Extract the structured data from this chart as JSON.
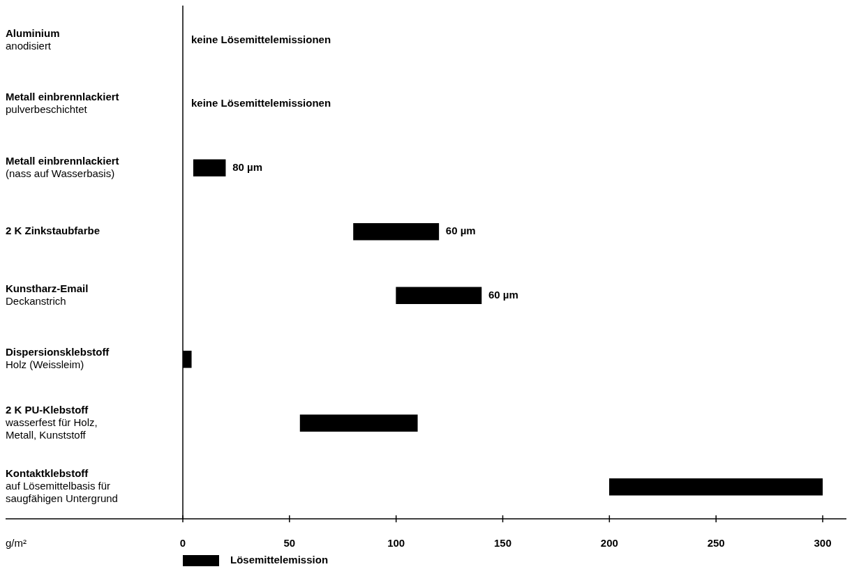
{
  "chart_data": {
    "type": "bar",
    "orientation": "horizontal",
    "xlabel": "g/m²",
    "legend": "bottom",
    "categories": [
      "Aluminium\nanodisiert",
      "Metall einbrennlackiert\npulverbeschichtet",
      "Metall einbrennlackiert\n(nass auf Wasserbasis)",
      "2 K Zinkstaubfarbe",
      "Kunstharz-Email\nDeckanstrich",
      "Dispersionsklebstoff\nHolz (Weissleim)",
      "2 K PU-Klebstoff\nwasserfest für Holz,\nMetall, Kunststoff",
      "Kontaktklebstoff\nauf Lösemittelbasis für\nsaugfähigen Untergrund"
    ],
    "series": [
      {
        "name": "Lösemittelemission",
        "color": "#000000",
        "values": [
          null,
          null,
          15,
          40,
          40,
          4,
          55,
          100
        ],
        "base": [
          null,
          null,
          5,
          80,
          100,
          0,
          55,
          200
        ]
      }
    ],
    "xlim": [
      0,
      300
    ],
    "xticks": [
      0,
      50,
      100,
      150,
      200,
      250,
      300
    ],
    "annotations": [
      "keine Lösemittelemissionen",
      "keine Lösemittelemissionen",
      {
        "text": "80 µm",
        "x": 20,
        "y": "Metall einbrennlackiert\n(nass auf Wasserbasis)"
      },
      {
        "text": "60 µm",
        "x": 120,
        "y": "2 K Zinkstaubfarbe"
      },
      {
        "text": "60 µm",
        "x": 140,
        "y": "Kunstharz-Email\nDeckanstrich"
      }
    ]
  }
}
